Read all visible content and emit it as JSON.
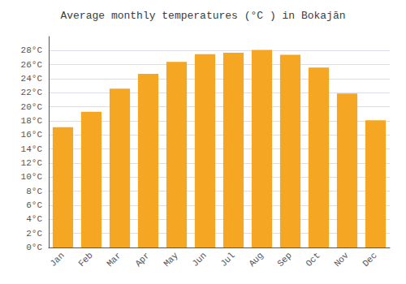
{
  "chart_data": {
    "type": "bar",
    "title": "Average monthly temperatures (°C ) in Bokajān",
    "categories": [
      "Jan",
      "Feb",
      "Mar",
      "Apr",
      "May",
      "Jun",
      "Jul",
      "Aug",
      "Sep",
      "Oct",
      "Nov",
      "Dec"
    ],
    "values": [
      17.1,
      19.3,
      22.6,
      24.7,
      26.4,
      27.5,
      27.7,
      28.1,
      27.4,
      25.6,
      21.9,
      18.1
    ],
    "color": "#F5A623",
    "ylim": [
      0,
      30
    ],
    "yticks": [
      {
        "value": 0,
        "label": "0°C"
      },
      {
        "value": 2,
        "label": "2°C"
      },
      {
        "value": 4,
        "label": "4°C"
      },
      {
        "value": 6,
        "label": "6°C"
      },
      {
        "value": 8,
        "label": "8°C"
      },
      {
        "value": 10,
        "label": "10°C"
      },
      {
        "value": 12,
        "label": "12°C"
      },
      {
        "value": 14,
        "label": "14°C"
      },
      {
        "value": 16,
        "label": "16°C"
      },
      {
        "value": 18,
        "label": "18°C"
      },
      {
        "value": 20,
        "label": "20°C"
      },
      {
        "value": 22,
        "label": "22°C"
      },
      {
        "value": 24,
        "label": "24°C"
      },
      {
        "value": 26,
        "label": "26°C"
      },
      {
        "value": 28,
        "label": "28°C"
      }
    ],
    "grid": true
  }
}
